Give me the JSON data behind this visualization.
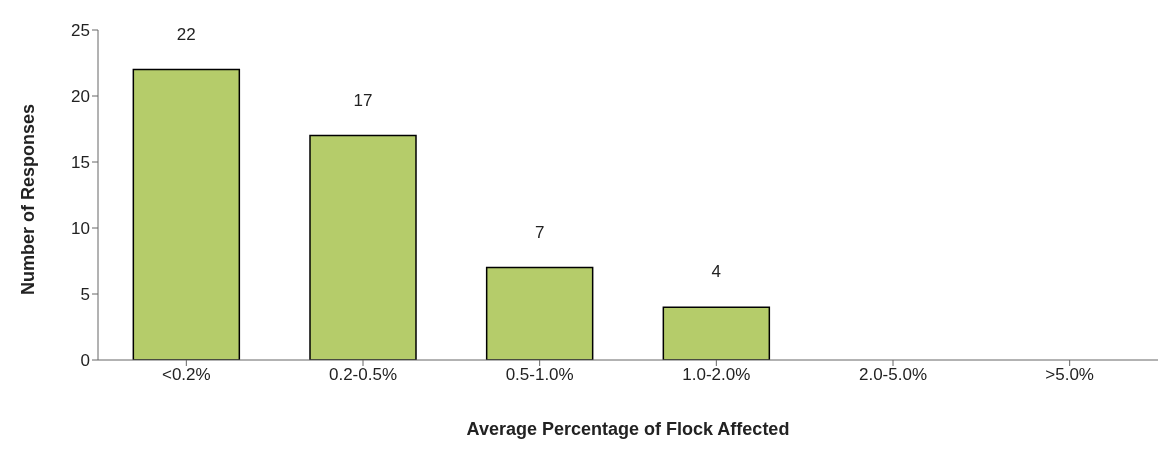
{
  "chart_data": {
    "type": "bar",
    "xlabel": "Average Percentage of Flock Affected",
    "ylabel": "Number of Responses",
    "categories": [
      "<0.2%",
      "0.2-0.5%",
      "0.5-1.0%",
      "1.0-2.0%",
      "2.0-5.0%",
      ">5.0%"
    ],
    "values": [
      22,
      17,
      7,
      4,
      0,
      0
    ],
    "value_labels": [
      "22",
      "17",
      "7",
      "4",
      null,
      null
    ],
    "color": "#b5cc6a",
    "ylim": [
      0,
      25
    ],
    "yticks": [
      0,
      5,
      10,
      15,
      20,
      25
    ],
    "grid": false
  }
}
